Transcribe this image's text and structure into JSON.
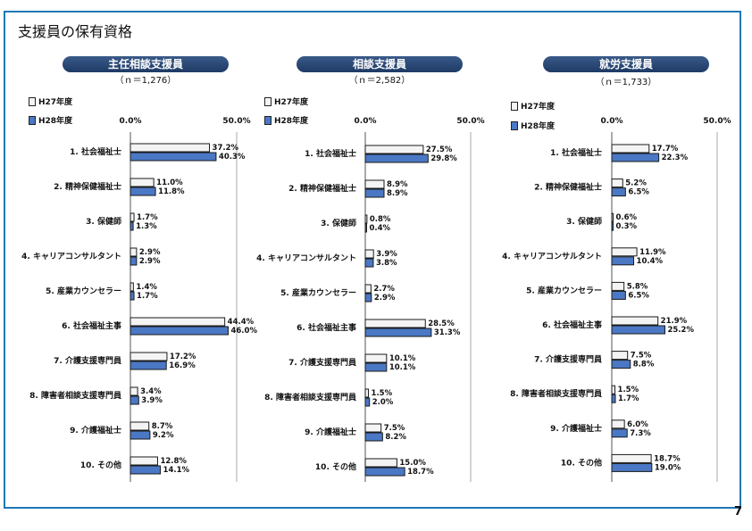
{
  "title": "支援員の保有資格",
  "page_number": "7",
  "colors": {
    "h27": "#f4f4f4",
    "h28": "#4a78c4",
    "banner": "#2b4a7a",
    "frame": "#1f78b4"
  },
  "legend": {
    "h27": "H27年度",
    "h28": "H28年度"
  },
  "chart_data": [
    {
      "type": "bar",
      "title": "主任相談支援員",
      "subtitle": "（ｎ＝1,276）",
      "axis_labels": [
        "0.0%",
        "50.0%"
      ],
      "xlim": [
        0,
        50
      ],
      "categories": [
        "1. 社会福祉士",
        "2. 精神保健福祉士",
        "3. 保健師",
        "4. キャリアコンサルタント",
        "5. 産業カウンセラー",
        "6. 社会福祉主事",
        "7. 介護支援専門員",
        "8. 障害者相談支援専門員",
        "9. 介護福祉士",
        "10. その他"
      ],
      "series": [
        {
          "name": "H27年度",
          "values": [
            37.2,
            11.0,
            1.7,
            2.9,
            1.4,
            44.4,
            17.2,
            3.4,
            8.7,
            12.8
          ],
          "labels": [
            "37.2%",
            "11.0%",
            "1.7%",
            "2.9%",
            "1.4%",
            "44.4%",
            "17.2%",
            "3.4%",
            "8.7%",
            "12.8%"
          ]
        },
        {
          "name": "H28年度",
          "values": [
            40.3,
            11.8,
            1.3,
            2.9,
            1.7,
            46.0,
            16.9,
            3.9,
            9.2,
            14.1
          ],
          "labels": [
            "40.3%",
            "11.8%",
            "1.3%",
            "2.9%",
            "1.7%",
            "46.0%",
            "16.9%",
            "3.9%",
            "9.2%",
            "14.1%"
          ]
        }
      ]
    },
    {
      "type": "bar",
      "title": "相談支援員",
      "subtitle": "（ｎ＝2,582）",
      "axis_labels": [
        "0.0%",
        "50.0%"
      ],
      "xlim": [
        0,
        50
      ],
      "categories": [
        "1. 社会福祉士",
        "2. 精神保健福祉士",
        "3. 保健師",
        "4. キャリアコンサルタント",
        "5. 産業カウンセラー",
        "6. 社会福祉主事",
        "7. 介護支援専門員",
        "8. 障害者相談支援専門員",
        "9. 介護福祉士",
        "10. その他"
      ],
      "series": [
        {
          "name": "H27年度",
          "values": [
            27.5,
            8.9,
            0.8,
            3.9,
            2.7,
            28.5,
            10.1,
            1.5,
            7.5,
            15.0
          ],
          "labels": [
            "27.5%",
            "8.9%",
            "0.8%",
            "3.9%",
            "2.7%",
            "28.5%",
            "10.1%",
            "1.5%",
            "7.5%",
            "15.0%"
          ]
        },
        {
          "name": "H28年度",
          "values": [
            29.8,
            8.9,
            0.4,
            3.8,
            2.9,
            31.3,
            10.1,
            2.0,
            8.2,
            18.7
          ],
          "labels": [
            "29.8%",
            "8.9%",
            "0.4%",
            "3.8%",
            "2.9%",
            "31.3%",
            "10.1%",
            "2.0%",
            "8.2%",
            "18.7%"
          ]
        }
      ]
    },
    {
      "type": "bar",
      "title": "就労支援員",
      "subtitle": "（ｎ＝1,733）",
      "axis_labels": [
        "0.0%",
        "50.0%"
      ],
      "xlim": [
        0,
        50
      ],
      "categories": [
        "1. 社会福祉士",
        "2. 精神保健福祉士",
        "3. 保健師",
        "4. キャリアコンサルタント",
        "5. 産業カウンセラー",
        "6. 社会福祉主事",
        "7. 介護支援専門員",
        "8. 障害者相談支援専門員",
        "9. 介護福祉士",
        "10. その他"
      ],
      "series": [
        {
          "name": "H27年度",
          "values": [
            17.7,
            5.2,
            0.6,
            11.9,
            5.8,
            21.9,
            7.5,
            1.5,
            6.0,
            18.7
          ],
          "labels": [
            "17.7%",
            "5.2%",
            "0.6%",
            "11.9%",
            "5.8%",
            "21.9%",
            "7.5%",
            "1.5%",
            "6.0%",
            "18.7%"
          ]
        },
        {
          "name": "H28年度",
          "values": [
            22.3,
            6.5,
            0.3,
            10.4,
            6.5,
            25.2,
            8.8,
            1.7,
            7.3,
            19.0
          ],
          "labels": [
            "22.3%",
            "6.5%",
            "0.3%",
            "10.4%",
            "6.5%",
            "25.2%",
            "8.8%",
            "1.7%",
            "7.3%",
            "19.0%"
          ]
        }
      ]
    }
  ]
}
